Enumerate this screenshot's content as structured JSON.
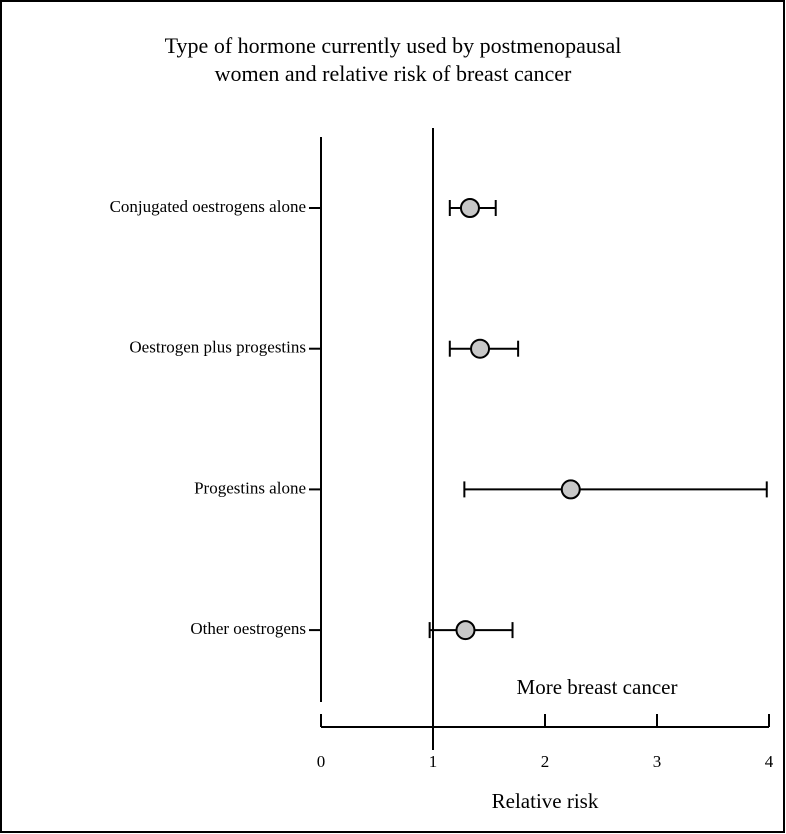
{
  "chart_data": {
    "type": "forest",
    "title": [
      "Type of hormone currently used by postmenopausal",
      "women and relative risk of breast cancer"
    ],
    "x_label": "Relative risk",
    "annotation": "More breast cancer",
    "categories": [
      "Conjugated oestrogens alone",
      "Oestrogen plus progestins",
      "Progestins alone",
      "Other oestrogens"
    ],
    "values": [
      1.33,
      1.42,
      2.23,
      1.29
    ],
    "lower": [
      1.15,
      1.15,
      1.28,
      0.97
    ],
    "upper": [
      1.56,
      1.76,
      3.98,
      1.71
    ],
    "marker_color": "#c8c8c8",
    "reference_line": 1,
    "xlim": [
      0,
      4
    ],
    "xticks": [
      0,
      1,
      2,
      3,
      4
    ]
  }
}
